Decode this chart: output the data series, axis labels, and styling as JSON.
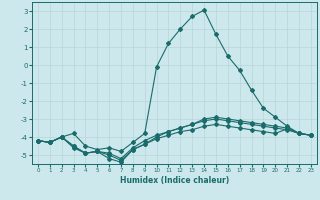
{
  "xlabel": "Humidex (Indice chaleur)",
  "background_color": "#cce8ec",
  "grid_color": "#b8d4d8",
  "line_color": "#1a6b6b",
  "xlim": [
    -0.5,
    23.5
  ],
  "ylim": [
    -5.5,
    3.5
  ],
  "yticks": [
    -5,
    -4,
    -3,
    -2,
    -1,
    0,
    1,
    2,
    3
  ],
  "xticks": [
    0,
    1,
    2,
    3,
    4,
    5,
    6,
    7,
    8,
    9,
    10,
    11,
    12,
    13,
    14,
    15,
    16,
    17,
    18,
    19,
    20,
    21,
    22,
    23
  ],
  "line_main_x": [
    0,
    1,
    2,
    3,
    4,
    5,
    6,
    7,
    8,
    9,
    10,
    11,
    12,
    13,
    14,
    15,
    16,
    17,
    18,
    19,
    20,
    21,
    22,
    23
  ],
  "line_main_y": [
    -4.2,
    -4.3,
    -4.0,
    -3.8,
    -4.5,
    -4.7,
    -4.6,
    -4.8,
    -4.3,
    -3.8,
    -0.1,
    1.2,
    2.0,
    2.7,
    3.05,
    1.7,
    0.5,
    -0.3,
    -1.4,
    -2.4,
    -2.9,
    -3.4,
    -3.8,
    -3.9
  ],
  "line_mid1_x": [
    0,
    1,
    2,
    3,
    4,
    5,
    6,
    7,
    8,
    9,
    10,
    11,
    12,
    13,
    14,
    15,
    16,
    17,
    18,
    19,
    20,
    21,
    22,
    23
  ],
  "line_mid1_y": [
    -4.2,
    -4.3,
    -4.0,
    -4.5,
    -4.9,
    -4.8,
    -5.0,
    -5.3,
    -4.7,
    -4.4,
    -4.0,
    -3.7,
    -3.5,
    -3.3,
    -3.1,
    -3.0,
    -3.1,
    -3.2,
    -3.3,
    -3.4,
    -3.5,
    -3.6,
    -3.8,
    -3.9
  ],
  "line_mid2_x": [
    0,
    1,
    2,
    3,
    4,
    5,
    6,
    7,
    8,
    9,
    10,
    11,
    12,
    13,
    14,
    15,
    16,
    17,
    18,
    19,
    20,
    21,
    22,
    23
  ],
  "line_mid2_y": [
    -4.2,
    -4.3,
    -4.0,
    -4.5,
    -4.9,
    -4.8,
    -4.9,
    -5.2,
    -4.6,
    -4.2,
    -3.9,
    -3.7,
    -3.5,
    -3.3,
    -3.0,
    -2.9,
    -3.0,
    -3.1,
    -3.2,
    -3.3,
    -3.4,
    -3.5,
    -3.8,
    -3.9
  ],
  "line_bot_x": [
    0,
    1,
    2,
    3,
    4,
    5,
    6,
    7,
    8,
    9,
    10,
    11,
    12,
    13,
    14,
    15,
    16,
    17,
    18,
    19,
    20,
    21,
    22,
    23
  ],
  "line_bot_y": [
    -4.2,
    -4.3,
    -4.0,
    -4.6,
    -4.9,
    -4.8,
    -5.2,
    -5.4,
    -4.7,
    -4.4,
    -4.1,
    -3.9,
    -3.7,
    -3.6,
    -3.4,
    -3.3,
    -3.4,
    -3.5,
    -3.6,
    -3.7,
    -3.8,
    -3.55,
    -3.8,
    -3.9
  ]
}
